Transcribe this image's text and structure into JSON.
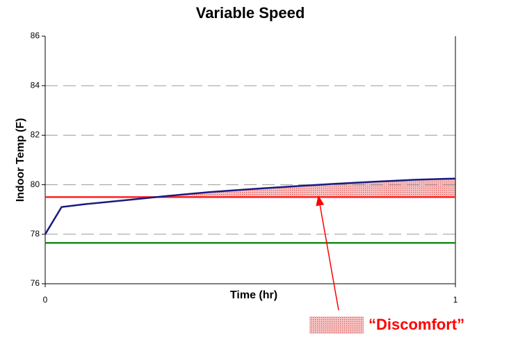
{
  "chart_data": {
    "type": "line",
    "title": "Variable Speed",
    "xlabel": "Time (hr)",
    "ylabel": "Indoor Temp (F)",
    "xlim": [
      0,
      1
    ],
    "xticks": [
      0,
      1
    ],
    "ylim": [
      76,
      86
    ],
    "yticks": [
      76,
      78,
      80,
      82,
      84,
      86
    ],
    "grid": true,
    "series": [
      {
        "color": "#1a1a80",
        "x": [
          0,
          0.04,
          0.1,
          0.2,
          0.3,
          0.4,
          0.5,
          0.6,
          0.7,
          0.8,
          0.9,
          1.0
        ],
        "values": [
          78.0,
          79.1,
          79.22,
          79.38,
          79.55,
          79.7,
          79.82,
          79.93,
          80.03,
          80.12,
          80.2,
          80.25
        ]
      },
      {
        "color": "#ff2020",
        "x": [
          0,
          1
        ],
        "values": [
          79.5,
          79.5
        ]
      },
      {
        "color": "#1a8a1a",
        "x": [
          0,
          1
        ],
        "values": [
          77.65,
          77.65
        ]
      }
    ],
    "annotation": "“Discomfort”"
  }
}
